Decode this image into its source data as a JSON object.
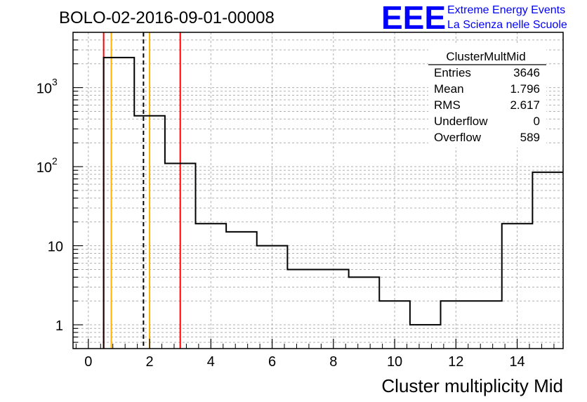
{
  "chart_data": {
    "type": "histogram",
    "title": "BOLO-02-2016-09-01-00008",
    "xlabel": "Cluster multiplicity Mid",
    "ylabel": "",
    "xlim": [
      -0.5,
      15.5
    ],
    "ylim": [
      0.5,
      5000
    ],
    "y_scale": "log",
    "grid": true,
    "x_ticks": [
      "0",
      "2",
      "4",
      "6",
      "8",
      "10",
      "12",
      "14"
    ],
    "y_ticks": [
      {
        "value": 1000,
        "base": "10",
        "exp": "3"
      },
      {
        "value": 100,
        "base": "10",
        "exp": "2"
      },
      {
        "value": 10,
        "base": "10",
        "exp": ""
      },
      {
        "value": 1,
        "base": "1",
        "exp": ""
      }
    ],
    "bins": [
      {
        "low": 0.5,
        "high": 1.5,
        "value": 2400
      },
      {
        "low": 1.5,
        "high": 2.5,
        "value": 440
      },
      {
        "low": 2.5,
        "high": 3.5,
        "value": 110
      },
      {
        "low": 3.5,
        "high": 4.5,
        "value": 19
      },
      {
        "low": 4.5,
        "high": 5.5,
        "value": 15
      },
      {
        "low": 5.5,
        "high": 6.5,
        "value": 10
      },
      {
        "low": 6.5,
        "high": 8.5,
        "value": 5
      },
      {
        "low": 8.5,
        "high": 9.5,
        "value": 4
      },
      {
        "low": 9.5,
        "high": 10.5,
        "value": 2
      },
      {
        "low": 10.5,
        "high": 11.5,
        "value": 1
      },
      {
        "low": 11.5,
        "high": 13.5,
        "value": 2
      },
      {
        "low": 13.5,
        "high": 14.5,
        "value": 19
      },
      {
        "low": 14.5,
        "high": 15.5,
        "value": 85
      }
    ],
    "vertical_lines": [
      {
        "x": 0.5,
        "color": "#ff0000",
        "style": "solid"
      },
      {
        "x": 0.75,
        "color": "#ffb300",
        "style": "solid"
      },
      {
        "x": 1.8,
        "color": "#000000",
        "style": "dashed"
      },
      {
        "x": 2.0,
        "color": "#ffb300",
        "style": "solid"
      },
      {
        "x": 3.0,
        "color": "#ff0000",
        "style": "solid"
      }
    ],
    "stats_box": {
      "name": "ClusterMultMid",
      "rows": [
        {
          "label": "Entries",
          "value": "3646"
        },
        {
          "label": "Mean",
          "value": "1.796"
        },
        {
          "label": "RMS",
          "value": "2.617"
        },
        {
          "label": "Underflow",
          "value": "0"
        },
        {
          "label": "Overflow",
          "value": "589"
        }
      ]
    }
  },
  "logo": {
    "mark": "EEE",
    "line1": "Extreme Energy Events",
    "line2": "La Scienza nelle Scuole",
    "color": "#0000ff"
  }
}
